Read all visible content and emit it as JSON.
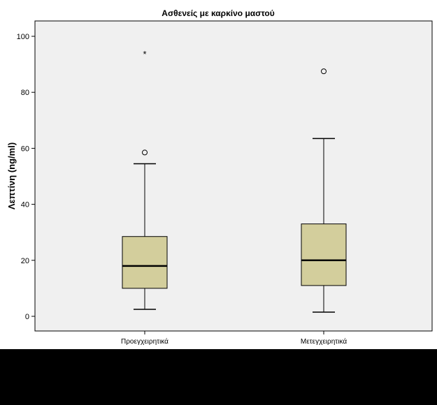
{
  "chart_data": {
    "type": "boxplot",
    "title": "Ασθενείς με καρκίνο μαστού",
    "ylabel": "Λεπτίνη (ng/ml)",
    "xlabel": "",
    "ylim": [
      -5,
      105
    ],
    "yticks": [
      0,
      20,
      40,
      60,
      80,
      100
    ],
    "grid": false,
    "categories": [
      "Προεγχειρητικά",
      "Μετεγχειρητικά"
    ],
    "boxes": [
      {
        "category": "Προεγχειρητικά",
        "whisker_low": 2.5,
        "q1": 10,
        "median": 18,
        "q3": 28.5,
        "whisker_high": 54.5,
        "outliers": [
          58.5
        ],
        "extremes": [
          94
        ]
      },
      {
        "category": "Μετεγχειρητικά",
        "whisker_low": 1.5,
        "q1": 11,
        "median": 20,
        "q3": 33,
        "whisker_high": 63.5,
        "outliers": [
          87.5
        ],
        "extremes": []
      }
    ],
    "colors": {
      "plot_background": "#f0f0f0",
      "box_fill": "#d3ce9c",
      "lines": "#000000"
    }
  }
}
